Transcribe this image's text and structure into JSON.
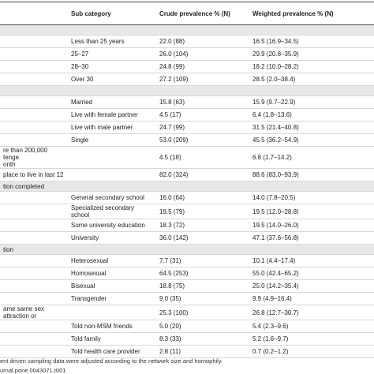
{
  "table": {
    "header": [
      "Sub category",
      "Crude prevalence % (N)",
      "Weighted prevalence % (N)"
    ],
    "rows": [
      [],
      [
        "",
        "Less than 25 years",
        "22.0 (88)",
        "16.5 (16.9–34.5)"
      ],
      [
        "",
        "25–27",
        "26.0 (104)",
        "29.9 (20.8–35.9)"
      ],
      [
        "",
        "28–30",
        "24.8 (99)",
        "18.2 (10.0–28.2)"
      ],
      [
        "",
        "Over 30",
        "27.2 (109)",
        "28.5 (2.0–38.4)"
      ],
      [],
      [
        "",
        "Married",
        "15.8 (63)",
        "15.9 (9.7–22.9)"
      ],
      [
        "",
        "Live with female partner",
        "4.5 (17)",
        "6.4 (1.8–13.6)"
      ],
      [
        "",
        "Live with male partner",
        "24.7 (99)",
        "31.5 (21.4–40.8)"
      ],
      [
        "",
        "Single",
        "53.0 (209)",
        "45.5 (36.2–54.9)"
      ],
      [
        "re than 200,000 tenge\nonth",
        "",
        "4.5 (18)",
        "6.8 (1.7–14.2)"
      ],
      [
        "place to live in last 12",
        "",
        "82.0 (324)",
        "88.6 (83.0–93.9)"
      ],
      [
        "tion completed"
      ],
      [
        "",
        "General secondary school",
        "16.0 (64)",
        "14.0 (7.8–20.5)"
      ],
      [
        "",
        "Specialized secondary school",
        "19.5 (79)",
        "19.5 (12.0–28.8)"
      ],
      [
        "",
        "Some university education",
        "18.3 (72)",
        "19.5 (14.0–26.0)"
      ],
      [
        "",
        "University",
        "36.0 (142)",
        "47.1 (37.6–56.8)"
      ],
      [
        "tion"
      ],
      [
        "",
        "Heterosexual",
        "7.7 (31)",
        "10.1 (4.4–17.4)"
      ],
      [
        "",
        "Homosexual",
        "64.5 (253)",
        "55.0 (42.4–65.2)"
      ],
      [
        "",
        "Bisexual",
        "18.8 (75)",
        "25.0 (14.2–35.4)"
      ],
      [
        "",
        "Transgender",
        "9.0 (35)",
        "9.9 (4.9–16.4)"
      ],
      [
        "ame same sex attraction or",
        "",
        "25.3 (100)",
        "26.8 (12.7–30.7)"
      ],
      [
        "",
        "Told non-MSM friends",
        "5.0 (20)",
        "5.4 (2.3–9.6)"
      ],
      [
        "",
        "Told family",
        "8.3 (33)",
        "5.2 (1.6–9.7)"
      ],
      [
        "",
        "Told health care provider",
        "2.8 (11)",
        "0.7 (0.2–1.2)"
      ]
    ]
  },
  "footnotes": [
    "ent driven sampling data were adjusted according to the network size and homophily.",
    "urnal.pone.0043071.t001"
  ]
}
